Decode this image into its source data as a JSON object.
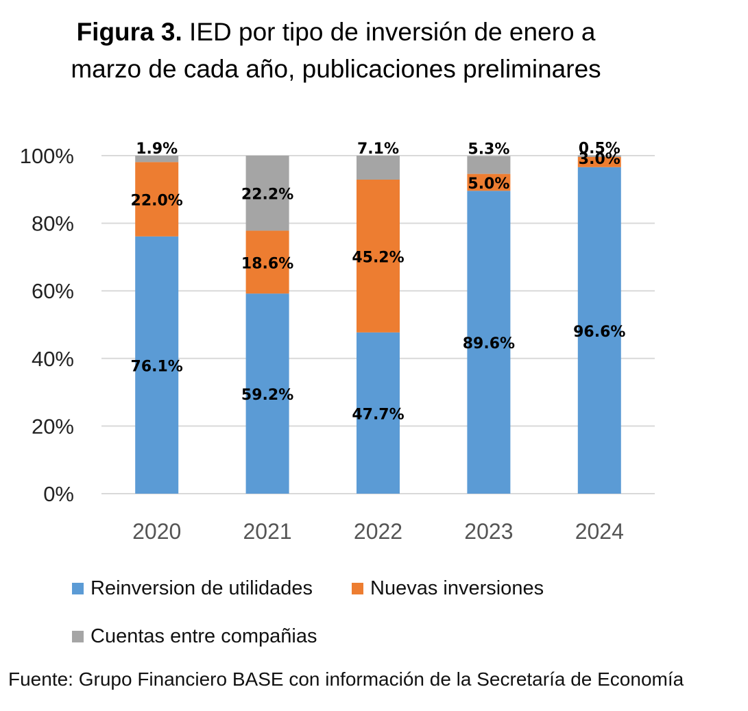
{
  "title": {
    "prefix": "Figura 3.",
    "text": "IED por tipo de inversión de enero a marzo de cada año, publicaciones preliminares"
  },
  "source": "Fuente: Grupo Financiero BASE con información de la Secretaría de Economía",
  "colors": {
    "reinversion": "#5B9BD5",
    "nuevas": "#ED7D31",
    "cuentas": "#A5A5A5",
    "grid": "#D9D9D9"
  },
  "chart_data": {
    "type": "bar",
    "stacked": true,
    "categories": [
      "2020",
      "2021",
      "2022",
      "2023",
      "2024"
    ],
    "series": [
      {
        "name": "Reinversion de utilidades",
        "values": [
          76.1,
          59.2,
          47.7,
          89.6,
          96.6
        ],
        "labels": [
          "76.1%",
          "59.2%",
          "47.7%",
          "89.6%",
          "96.6%"
        ]
      },
      {
        "name": "Nuevas inversiones",
        "values": [
          22.0,
          18.6,
          45.2,
          5.0,
          3.0
        ],
        "labels": [
          "22.0%",
          "18.6%",
          "45.2%",
          "5.0%",
          "3.0%"
        ]
      },
      {
        "name": "Cuentas entre compañias",
        "values": [
          1.9,
          22.2,
          7.1,
          5.3,
          0.5
        ],
        "labels": [
          "1.9%",
          "22.2%",
          "7.1%",
          "5.3%",
          "0.5%"
        ]
      }
    ],
    "ylim": [
      0,
      100
    ],
    "yticks": [
      "0%",
      "20%",
      "40%",
      "60%",
      "80%",
      "100%"
    ],
    "grid": true,
    "legend_position": "bottom"
  }
}
